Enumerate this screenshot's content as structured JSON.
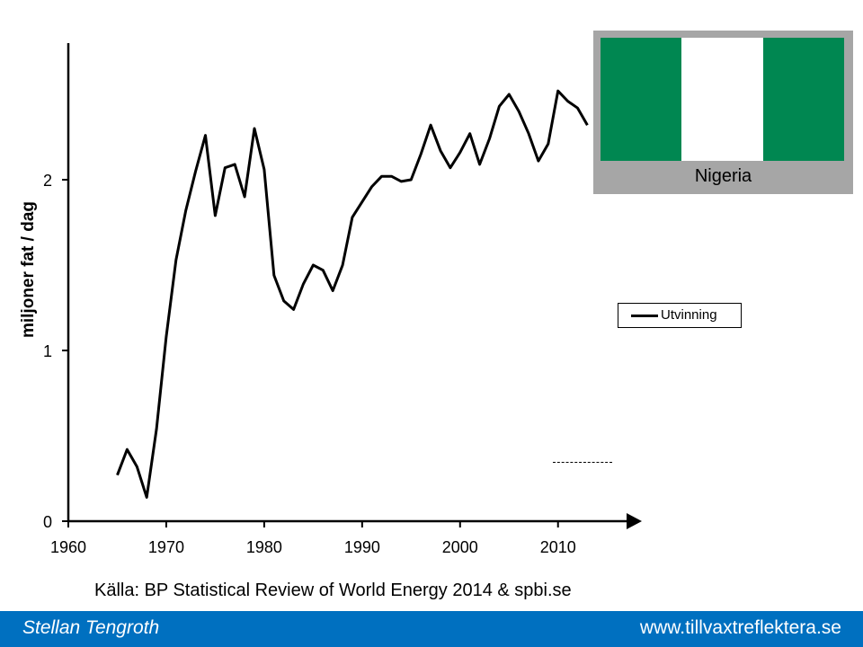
{
  "chart_data": {
    "type": "line",
    "ylabel": "miljoner  fat / dag",
    "x_ticks": [
      "1960",
      "1970",
      "1980",
      "1990",
      "2000",
      "2010"
    ],
    "y_ticks": [
      "0",
      "1",
      "2"
    ],
    "xlim": [
      1960,
      2017
    ],
    "ylim": [
      0,
      2.8
    ],
    "grid": false,
    "legend_position": "right",
    "series": [
      {
        "name": "Utvinning",
        "color": "#000000",
        "x": [
          1965,
          1966,
          1967,
          1968,
          1969,
          1970,
          1971,
          1972,
          1973,
          1974,
          1975,
          1976,
          1977,
          1978,
          1979,
          1980,
          1981,
          1982,
          1983,
          1984,
          1985,
          1986,
          1987,
          1988,
          1989,
          1990,
          1991,
          1992,
          1993,
          1994,
          1995,
          1996,
          1997,
          1998,
          1999,
          2000,
          2001,
          2002,
          2003,
          2004,
          2005,
          2006,
          2007,
          2008,
          2009,
          2010,
          2011,
          2012,
          2013
        ],
        "y": [
          0.27,
          0.42,
          0.32,
          0.14,
          0.54,
          1.08,
          1.53,
          1.82,
          2.05,
          2.26,
          1.79,
          2.07,
          2.09,
          1.9,
          2.3,
          2.06,
          1.44,
          1.29,
          1.24,
          1.39,
          1.5,
          1.47,
          1.35,
          1.5,
          1.78,
          1.87,
          1.96,
          2.02,
          2.02,
          1.99,
          2.0,
          2.15,
          2.32,
          2.17,
          2.07,
          2.16,
          2.27,
          2.09,
          2.24,
          2.43,
          2.5,
          2.4,
          2.27,
          2.11,
          2.21,
          2.52,
          2.46,
          2.42,
          2.32
        ]
      }
    ]
  },
  "flag": {
    "name": "Nigeria",
    "colors": [
      "#008751",
      "#ffffff",
      "#008751"
    ]
  },
  "legend": {
    "label": "Utvinning"
  },
  "source": "Källa: BP Statistical Review of World Energy 2014 & spbi.se",
  "footer": {
    "author": "Stellan Tengroth",
    "website": "www.tillvaxtreflektera.se",
    "color": "#0070c0"
  }
}
